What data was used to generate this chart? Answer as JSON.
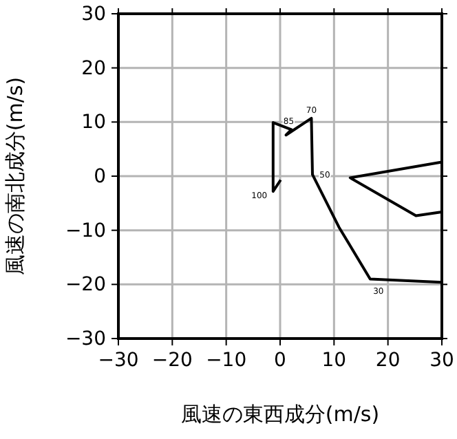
{
  "chart_data": {
    "type": "line",
    "xlabel": "風速の東西成分(m/s)",
    "ylabel": "風速の南北成分(m/s)",
    "xlim": [
      -30,
      30
    ],
    "ylim": [
      -30,
      30
    ],
    "xticks": [
      -30,
      -20,
      -10,
      0,
      10,
      20,
      30
    ],
    "yticks": [
      -30,
      -20,
      -10,
      0,
      10,
      20,
      30
    ],
    "grid": true,
    "marker": "none",
    "line_style": "solid",
    "series": [
      {
        "color": "#000000",
        "x": [
          0.1,
          -1.3,
          -1.3,
          2.1,
          1.1,
          5.8,
          6.0,
          10.9,
          16.7,
          30,
          null,
          30,
          25.2,
          13.0,
          30
        ],
        "values": [
          -0.7,
          -2.8,
          9.9,
          8.6,
          7.6,
          10.7,
          0.3,
          -9.4,
          -19.0,
          -19.6,
          null,
          -6.6,
          -7.3,
          -0.3,
          2.6
        ]
      }
    ],
    "annotations": [
      {
        "text": "100",
        "x": -1.3,
        "y": -2.8
      },
      {
        "text": "85",
        "x": 2.1,
        "y": 8.6
      },
      {
        "text": "70",
        "x": 5.8,
        "y": 10.7
      },
      {
        "text": "50",
        "x": 6.0,
        "y": 0.3
      },
      {
        "text": "30",
        "x": 16.7,
        "y": -19.0
      }
    ]
  }
}
